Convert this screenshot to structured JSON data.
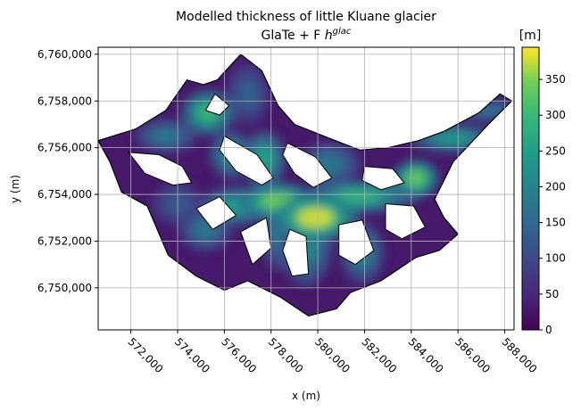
{
  "chart_data": {
    "type": "heatmap",
    "title_line1": "Modelled thickness of little Kluane glacier",
    "title_line2_prefix": "GlaTe + F ",
    "title_line2_var": "h",
    "title_line2_sup": "glac",
    "xlabel": "x (m)",
    "ylabel": "y (m)",
    "xlim": [
      570600,
      588400
    ],
    "ylim": [
      6748200,
      6760300
    ],
    "x_ticks": [
      572000,
      574000,
      576000,
      578000,
      580000,
      582000,
      584000,
      586000,
      588000
    ],
    "x_tick_labels": [
      "572,000",
      "574,000",
      "576,000",
      "578,000",
      "580,000",
      "582,000",
      "584,000",
      "586,000",
      "588,000"
    ],
    "y_ticks": [
      6750000,
      6752000,
      6754000,
      6756000,
      6758000,
      6760000
    ],
    "y_tick_labels": [
      "6,750,000",
      "6,752,000",
      "6,754,000",
      "6,756,000",
      "6,758,000",
      "6,760,000"
    ],
    "grid": true,
    "colormap": "viridis",
    "colorbar": {
      "label": "[m]",
      "range": [
        0,
        395
      ],
      "ticks": [
        0,
        50,
        100,
        150,
        200,
        250,
        300,
        350
      ],
      "tick_labels": [
        "0",
        "50",
        "100",
        "150",
        "200",
        "250",
        "300",
        "350"
      ]
    },
    "glacier_outline": [
      [
        570600,
        6756300
      ],
      [
        572200,
        6756800
      ],
      [
        573500,
        6757600
      ],
      [
        574400,
        6758900
      ],
      [
        575100,
        6758700
      ],
      [
        575700,
        6758900
      ],
      [
        576700,
        6760000
      ],
      [
        577600,
        6759300
      ],
      [
        578300,
        6757800
      ],
      [
        579000,
        6757000
      ],
      [
        580500,
        6756400
      ],
      [
        581800,
        6755900
      ],
      [
        583000,
        6756000
      ],
      [
        584300,
        6756300
      ],
      [
        585400,
        6756700
      ],
      [
        586900,
        6757500
      ],
      [
        587800,
        6758300
      ],
      [
        588300,
        6758000
      ],
      [
        587300,
        6757000
      ],
      [
        585800,
        6755400
      ],
      [
        585000,
        6753800
      ],
      [
        585400,
        6753000
      ],
      [
        586000,
        6752300
      ],
      [
        585200,
        6751600
      ],
      [
        584200,
        6751300
      ],
      [
        582700,
        6750300
      ],
      [
        581400,
        6749800
      ],
      [
        580800,
        6749100
      ],
      [
        579600,
        6748800
      ],
      [
        578400,
        6749600
      ],
      [
        577000,
        6750300
      ],
      [
        576000,
        6749900
      ],
      [
        574800,
        6750500
      ],
      [
        573600,
        6751400
      ],
      [
        572700,
        6753500
      ],
      [
        571600,
        6754100
      ],
      [
        571100,
        6755400
      ]
    ],
    "ice_free_areas": [
      [
        [
          571900,
          6755800
        ],
        [
          573200,
          6755700
        ],
        [
          574200,
          6755200
        ],
        [
          574600,
          6754500
        ],
        [
          573800,
          6754400
        ],
        [
          572600,
          6754900
        ]
      ],
      [
        [
          576000,
          6756500
        ],
        [
          577400,
          6755700
        ],
        [
          578100,
          6754700
        ],
        [
          577600,
          6754400
        ],
        [
          576500,
          6755000
        ],
        [
          575800,
          6755900
        ]
      ],
      [
        [
          578700,
          6756200
        ],
        [
          579900,
          6755600
        ],
        [
          580600,
          6754700
        ],
        [
          579800,
          6754300
        ],
        [
          579000,
          6754900
        ],
        [
          578500,
          6755700
        ]
      ],
      [
        [
          582000,
          6755200
        ],
        [
          583200,
          6755100
        ],
        [
          583700,
          6754500
        ],
        [
          582700,
          6754200
        ],
        [
          581900,
          6754600
        ]
      ],
      [
        [
          574800,
          6753400
        ],
        [
          575800,
          6753900
        ],
        [
          576500,
          6753100
        ],
        [
          575500,
          6752500
        ]
      ],
      [
        [
          576700,
          6752400
        ],
        [
          577800,
          6753000
        ],
        [
          578000,
          6751700
        ],
        [
          577200,
          6751000
        ]
      ],
      [
        [
          578800,
          6752500
        ],
        [
          579500,
          6752200
        ],
        [
          579600,
          6750600
        ],
        [
          578900,
          6750500
        ],
        [
          578500,
          6751600
        ]
      ],
      [
        [
          580900,
          6752700
        ],
        [
          581900,
          6752900
        ],
        [
          582400,
          6751600
        ],
        [
          581600,
          6751000
        ],
        [
          580900,
          6751400
        ]
      ],
      [
        [
          582900,
          6753600
        ],
        [
          584100,
          6753500
        ],
        [
          584600,
          6752600
        ],
        [
          583600,
          6752100
        ],
        [
          582900,
          6752500
        ]
      ],
      [
        [
          575600,
          6758300
        ],
        [
          576200,
          6757800
        ],
        [
          575800,
          6757400
        ],
        [
          575200,
          6757600
        ]
      ]
    ],
    "thickness_features": [
      {
        "x": 579900,
        "y": 6753000,
        "thickness": 385,
        "sx": 950,
        "sy": 520
      },
      {
        "x": 578300,
        "y": 6753700,
        "thickness": 345,
        "sx": 900,
        "sy": 430
      },
      {
        "x": 581700,
        "y": 6753900,
        "thickness": 290,
        "sx": 1200,
        "sy": 380
      },
      {
        "x": 584200,
        "y": 6754700,
        "thickness": 340,
        "sx": 520,
        "sy": 420
      },
      {
        "x": 583200,
        "y": 6754200,
        "thickness": 250,
        "sx": 800,
        "sy": 360
      },
      {
        "x": 585800,
        "y": 6756400,
        "thickness": 240,
        "sx": 1000,
        "sy": 330
      },
      {
        "x": 587300,
        "y": 6757600,
        "thickness": 170,
        "sx": 700,
        "sy": 280
      },
      {
        "x": 575300,
        "y": 6757500,
        "thickness": 300,
        "sx": 600,
        "sy": 520
      },
      {
        "x": 576300,
        "y": 6755700,
        "thickness": 220,
        "sx": 500,
        "sy": 550
      },
      {
        "x": 573500,
        "y": 6756500,
        "thickness": 180,
        "sx": 700,
        "sy": 400
      },
      {
        "x": 576500,
        "y": 6753500,
        "thickness": 250,
        "sx": 800,
        "sy": 450
      },
      {
        "x": 575200,
        "y": 6752500,
        "thickness": 180,
        "sx": 600,
        "sy": 500
      },
      {
        "x": 577700,
        "y": 6755500,
        "thickness": 260,
        "sx": 500,
        "sy": 650
      },
      {
        "x": 579500,
        "y": 6751800,
        "thickness": 210,
        "sx": 600,
        "sy": 900
      },
      {
        "x": 581900,
        "y": 6751500,
        "thickness": 200,
        "sx": 500,
        "sy": 700
      },
      {
        "x": 578300,
        "y": 6752300,
        "thickness": 180,
        "sx": 400,
        "sy": 800
      },
      {
        "x": 580500,
        "y": 6755300,
        "thickness": 180,
        "sx": 700,
        "sy": 500
      },
      {
        "x": 574000,
        "y": 6753600,
        "thickness": 130,
        "sx": 600,
        "sy": 500
      },
      {
        "x": 577000,
        "y": 6758300,
        "thickness": 140,
        "sx": 500,
        "sy": 700
      }
    ]
  }
}
